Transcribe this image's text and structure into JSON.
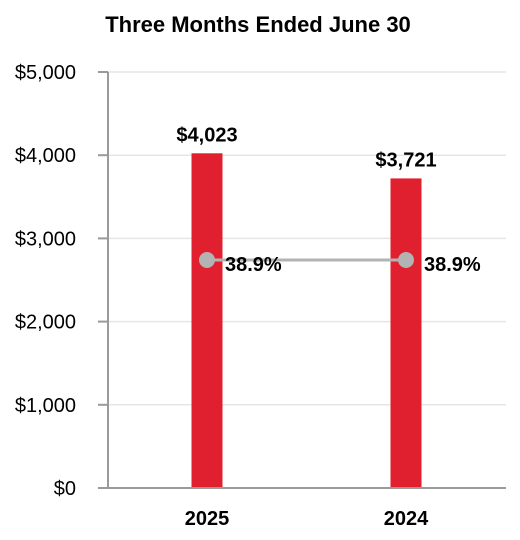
{
  "chart_data": {
    "type": "bar",
    "title": "Three Months Ended June 30",
    "categories": [
      "2025",
      "2024"
    ],
    "series": [
      {
        "type": "bar",
        "values": [
          4023,
          3721
        ],
        "value_labels": [
          "$4,023",
          "$3,721"
        ],
        "color": "#e0202e"
      },
      {
        "type": "line",
        "values": [
          38.9,
          38.9
        ],
        "value_labels": [
          "38.9%",
          "38.9%"
        ],
        "color": "#b3b3b3"
      }
    ],
    "ylim": [
      0,
      5000
    ],
    "yticks": [
      0,
      1000,
      2000,
      3000,
      4000,
      5000
    ],
    "ytick_labels": [
      "$0",
      "$1,000",
      "$2,000",
      "$3,000",
      "$4,000",
      "$5,000"
    ],
    "grid": true,
    "xlabel": "",
    "ylabel": ""
  }
}
